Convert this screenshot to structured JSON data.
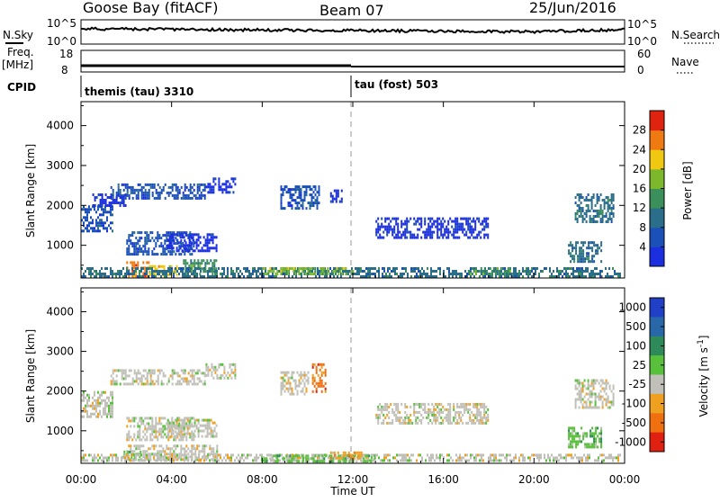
{
  "header": {
    "station": "Goose Bay (fitACF)",
    "beam": "Beam 07",
    "date": "25/Jun/2016"
  },
  "top_panels": {
    "nsky_label": "N.Sky",
    "nsky_ticks": [
      "10^5",
      "10^0"
    ],
    "nsearch_label": "N.Search",
    "nsearch_ticks": [
      "10^5",
      "10^0"
    ],
    "freq_label_line1": "Freq.",
    "freq_label_line2": "[MHz]",
    "freq_ticks": [
      "18",
      "8"
    ],
    "nave_label": "Nave",
    "nave_ticks": [
      "60",
      "0"
    ],
    "cpid_label": "CPID",
    "cpid_segments": [
      {
        "text": "themis (tau) 3310",
        "start_hour": 0,
        "end_hour": 12
      },
      {
        "text": "tau (fost) 503",
        "start_hour": 12,
        "end_hour": 24
      }
    ]
  },
  "time_axis": {
    "label": "Time UT",
    "ticks": [
      "00:00",
      "04:00",
      "08:00",
      "12:00",
      "16:00",
      "20:00",
      "00:00"
    ]
  },
  "chart_data": [
    {
      "type": "heatmap",
      "panel": "power",
      "ylabel": "Slant Range [km]",
      "yticks": [
        1000,
        2000,
        3000,
        4000
      ],
      "ylim": [
        180,
        4600
      ],
      "xlim": [
        0,
        24
      ],
      "colorbar": {
        "label": "Power [dB]",
        "ticks": [
          "4",
          "8",
          "12",
          "16",
          "20",
          "24",
          "28"
        ],
        "colors": [
          "#1b2fe0",
          "#1a50b8",
          "#2a6e8a",
          "#3b8f5a",
          "#7cb82b",
          "#f0c812",
          "#f07a12",
          "#e02310"
        ]
      },
      "regions": [
        {
          "x": [
            0.0,
            1.4
          ],
          "y": [
            1350,
            2000
          ],
          "level": 1
        },
        {
          "x": [
            1.3,
            5.5
          ],
          "y": [
            2200,
            2550
          ],
          "level": 1
        },
        {
          "x": [
            5.5,
            6.8
          ],
          "y": [
            2350,
            2700
          ],
          "level": 0
        },
        {
          "x": [
            0.5,
            2.0
          ],
          "y": [
            2000,
            2300
          ],
          "level": 0
        },
        {
          "x": [
            2.0,
            5.0
          ],
          "y": [
            800,
            1350
          ],
          "level": 1
        },
        {
          "x": [
            3.8,
            6.0
          ],
          "y": [
            850,
            1300
          ],
          "level": 0
        },
        {
          "x": [
            8.8,
            10.5
          ],
          "y": [
            1900,
            2500
          ],
          "level": 1
        },
        {
          "x": [
            11.0,
            11.5
          ],
          "y": [
            2100,
            2400
          ],
          "level": 0
        },
        {
          "x": [
            13.0,
            18.0
          ],
          "y": [
            1200,
            1700
          ],
          "level": 0
        },
        {
          "x": [
            21.8,
            23.5
          ],
          "y": [
            1600,
            2300
          ],
          "level": 2
        },
        {
          "x": [
            21.5,
            23.0
          ],
          "y": [
            600,
            1100
          ],
          "level": 2
        },
        {
          "x": [
            2.0,
            3.0
          ],
          "y": [
            250,
            600
          ],
          "level": 6
        },
        {
          "x": [
            3.0,
            4.2
          ],
          "y": [
            250,
            500
          ],
          "level": 5
        },
        {
          "x": [
            4.5,
            6.0
          ],
          "y": [
            300,
            650
          ],
          "level": 3
        },
        {
          "x": [
            0.0,
            23.8
          ],
          "y": [
            220,
            450
          ],
          "level": 2
        },
        {
          "x": [
            8.0,
            12.0
          ],
          "y": [
            250,
            450
          ],
          "level": 4
        },
        {
          "x": [
            17.0,
            19.0
          ],
          "y": [
            250,
            450
          ],
          "level": 3
        }
      ]
    },
    {
      "type": "heatmap",
      "panel": "velocity",
      "ylabel": "Slant Range [km]",
      "yticks": [
        1000,
        2000,
        3000,
        4000
      ],
      "ylim": [
        180,
        4600
      ],
      "xlim": [
        0,
        24
      ],
      "colorbar": {
        "label": "Velocity [m s^-1]",
        "ticks": [
          "1000",
          "500",
          "100",
          "25",
          "-25",
          "-100",
          "-500",
          "-1000"
        ],
        "colors": [
          "#2040c8",
          "#2868a8",
          "#2e8a58",
          "#58c03a",
          "#c0c0b8",
          "#f0a020",
          "#f07010",
          "#e02010"
        ]
      },
      "regions": [
        {
          "x": [
            0.0,
            1.4
          ],
          "y": [
            1350,
            2000
          ],
          "level": 4
        },
        {
          "x": [
            1.3,
            5.5
          ],
          "y": [
            2200,
            2550
          ],
          "level": 4
        },
        {
          "x": [
            5.5,
            6.8
          ],
          "y": [
            2350,
            2700
          ],
          "level": 4
        },
        {
          "x": [
            2.0,
            5.0
          ],
          "y": [
            800,
            1350
          ],
          "level": 4
        },
        {
          "x": [
            3.8,
            6.0
          ],
          "y": [
            850,
            1300
          ],
          "level": 4
        },
        {
          "x": [
            8.8,
            10.0
          ],
          "y": [
            1900,
            2500
          ],
          "level": 4
        },
        {
          "x": [
            10.2,
            10.8
          ],
          "y": [
            2000,
            2700
          ],
          "level": 6
        },
        {
          "x": [
            13.0,
            18.0
          ],
          "y": [
            1200,
            1700
          ],
          "level": 4
        },
        {
          "x": [
            21.8,
            23.5
          ],
          "y": [
            1600,
            2300
          ],
          "level": 4
        },
        {
          "x": [
            21.5,
            23.0
          ],
          "y": [
            600,
            1100
          ],
          "level": 3
        },
        {
          "x": [
            2.0,
            6.0
          ],
          "y": [
            250,
            650
          ],
          "level": 4
        },
        {
          "x": [
            1.8,
            2.6
          ],
          "y": [
            280,
            500
          ],
          "level": 3
        },
        {
          "x": [
            0.0,
            23.8
          ],
          "y": [
            220,
            420
          ],
          "level": 4
        },
        {
          "x": [
            8.0,
            13.0
          ],
          "y": [
            230,
            400
          ],
          "level": 3
        },
        {
          "x": [
            11.0,
            12.5
          ],
          "y": [
            300,
            480
          ],
          "level": 5
        }
      ]
    }
  ]
}
